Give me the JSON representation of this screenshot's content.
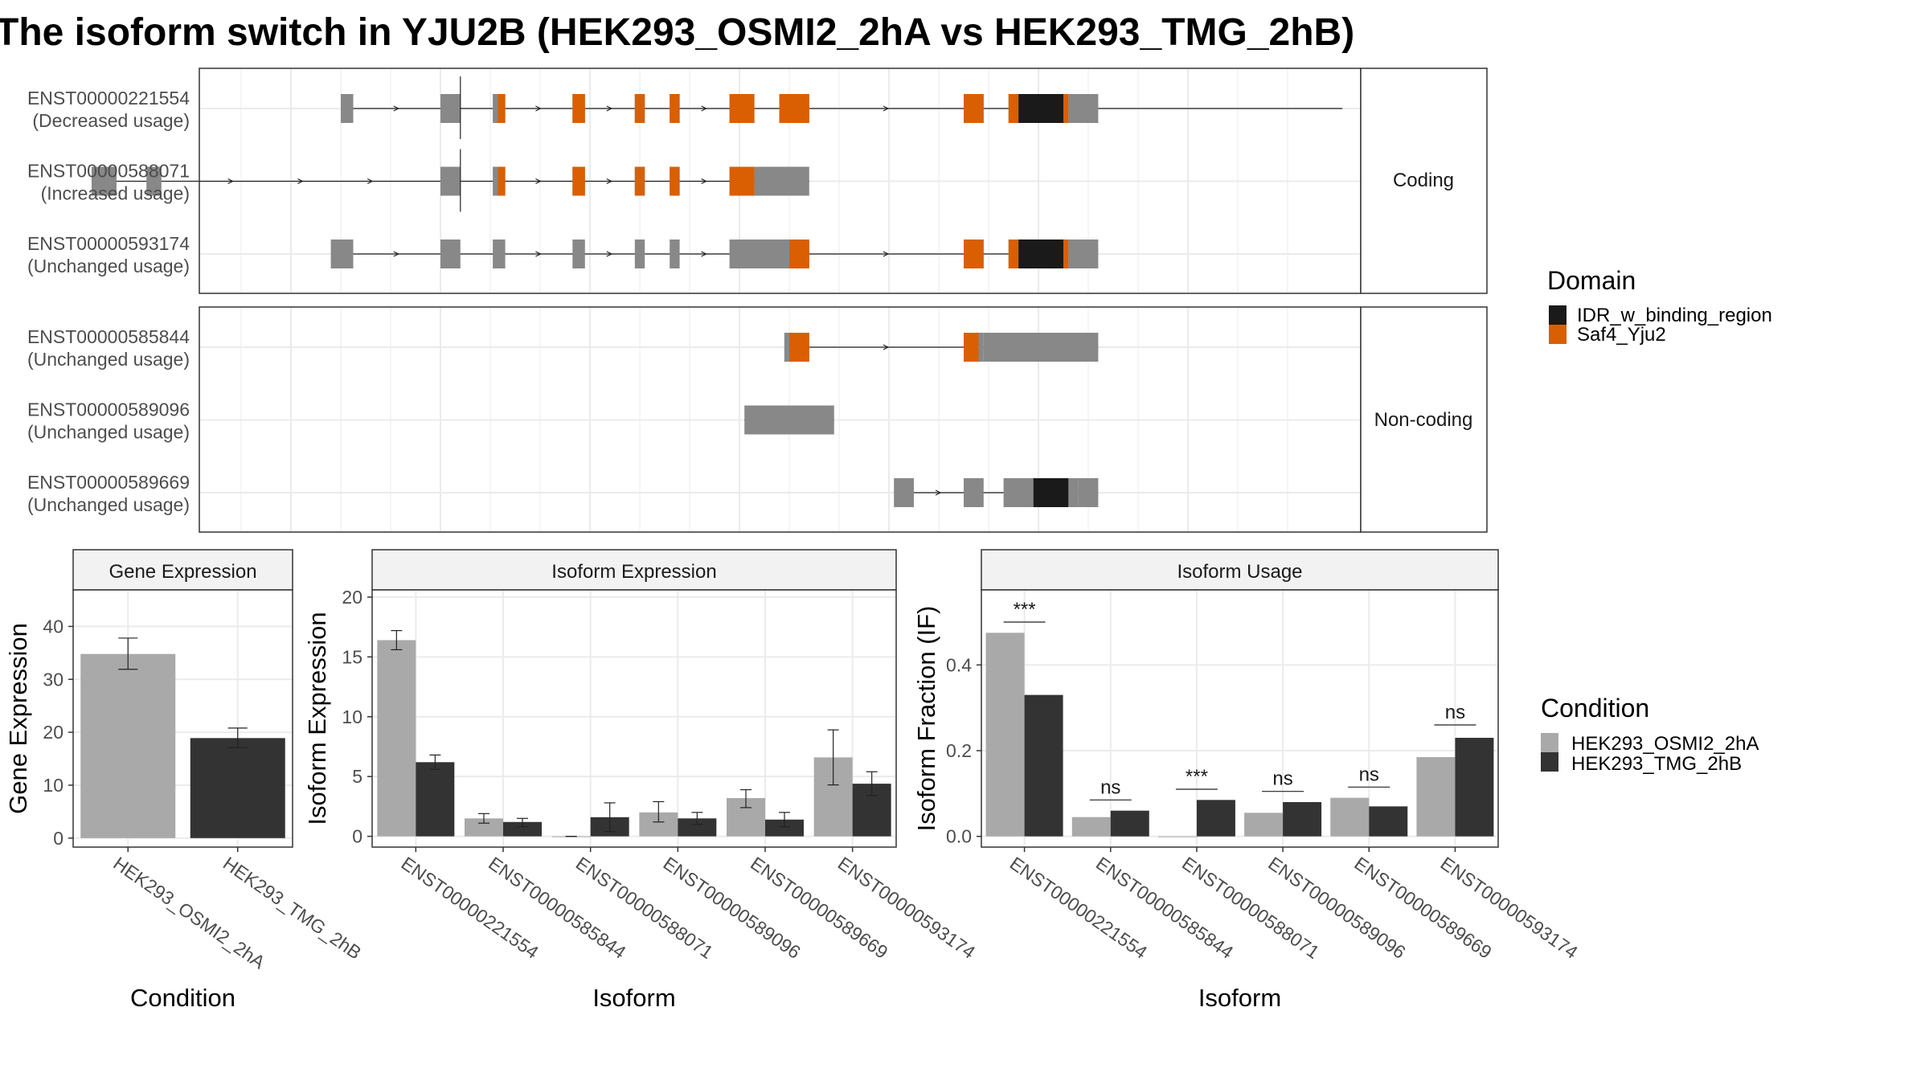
{
  "title": "The isoform switch in YJU2B (HEK293_OSMI2_2hA vs HEK293_TMG_2hB)",
  "colors": {
    "cond_a": "#a9a9a9",
    "cond_b": "#333333",
    "exon": "#888888",
    "saf4": "#d95f02",
    "idr": "#1a1a1a",
    "strip": "#f2f2f2",
    "grid": "#ebebeb",
    "frame": "#333333"
  },
  "structure": {
    "facet_coding": "Coding",
    "facet_noncoding": "Non-coding",
    "coding": [
      {
        "id": "ENST00000221554",
        "usage": "(Decreased usage)",
        "intron": [
          1.0,
          21.1
        ],
        "exons": [
          [
            1.0,
            1.25
          ],
          [
            3.0,
            3.4
          ],
          [
            4.05,
            4.3
          ],
          [
            5.65,
            5.9
          ],
          [
            6.9,
            7.1
          ],
          [
            7.6,
            7.8
          ],
          [
            8.8,
            9.3
          ],
          [
            9.8,
            10.4
          ],
          [
            13.5,
            13.9
          ],
          [
            14.4,
            15.4
          ],
          [
            15.4,
            15.6
          ],
          [
            15.6,
            16.2
          ]
        ],
        "domains": [
          {
            "d": "saf4",
            "r": [
              4.15,
              4.3
            ]
          },
          {
            "d": "saf4",
            "r": [
              5.65,
              5.9
            ]
          },
          {
            "d": "saf4",
            "r": [
              6.9,
              7.1
            ]
          },
          {
            "d": "saf4",
            "r": [
              7.6,
              7.8
            ]
          },
          {
            "d": "saf4",
            "r": [
              8.8,
              9.3
            ]
          },
          {
            "d": "saf4",
            "r": [
              9.8,
              10.4
            ]
          },
          {
            "d": "saf4",
            "r": [
              13.5,
              13.9
            ]
          },
          {
            "d": "saf4",
            "r": [
              14.4,
              14.6
            ]
          },
          {
            "d": "idr",
            "r": [
              14.6,
              15.5
            ]
          },
          {
            "d": "saf4",
            "r": [
              15.5,
              15.6
            ]
          }
        ],
        "mark": 3.4
      },
      {
        "id": "ENST00000588071",
        "usage": "(Increased usage)",
        "intron": [
          -4.0,
          10.4
        ],
        "exons": [
          [
            -4.0,
            -3.5
          ],
          [
            -2.9,
            -2.6
          ],
          [
            3.0,
            3.4
          ],
          [
            4.05,
            4.3
          ],
          [
            5.65,
            5.9
          ],
          [
            6.9,
            7.1
          ],
          [
            7.6,
            7.8
          ],
          [
            8.8,
            9.3
          ],
          [
            9.3,
            10.4
          ]
        ],
        "domains": [
          {
            "d": "saf4",
            "r": [
              4.15,
              4.3
            ]
          },
          {
            "d": "saf4",
            "r": [
              5.65,
              5.9
            ]
          },
          {
            "d": "saf4",
            "r": [
              6.9,
              7.1
            ]
          },
          {
            "d": "saf4",
            "r": [
              7.6,
              7.8
            ]
          },
          {
            "d": "saf4",
            "r": [
              8.8,
              9.3
            ]
          }
        ],
        "mark": 3.4
      },
      {
        "id": "ENST00000593174",
        "usage": "(Unchanged usage)",
        "intron": [
          0.8,
          16.2
        ],
        "exons": [
          [
            0.8,
            1.25
          ],
          [
            3.0,
            3.4
          ],
          [
            4.05,
            4.3
          ],
          [
            5.65,
            5.9
          ],
          [
            6.9,
            7.1
          ],
          [
            7.6,
            7.8
          ],
          [
            8.8,
            10.0
          ],
          [
            10.0,
            10.4
          ],
          [
            13.5,
            13.9
          ],
          [
            14.4,
            15.4
          ],
          [
            15.4,
            15.6
          ],
          [
            15.6,
            16.2
          ]
        ],
        "domains": [
          {
            "d": "saf4",
            "r": [
              10.0,
              10.4
            ]
          },
          {
            "d": "saf4",
            "r": [
              13.5,
              13.9
            ]
          },
          {
            "d": "saf4",
            "r": [
              14.4,
              14.6
            ]
          },
          {
            "d": "idr",
            "r": [
              14.6,
              15.5
            ]
          },
          {
            "d": "saf4",
            "r": [
              15.5,
              15.6
            ]
          }
        ]
      }
    ],
    "noncoding": [
      {
        "id": "ENST00000585844",
        "usage": "(Unchanged usage)",
        "intron": [
          9.9,
          16.2
        ],
        "exons": [
          [
            9.9,
            10.4
          ],
          [
            13.5,
            13.9
          ],
          [
            13.9,
            16.2
          ]
        ],
        "domains": [
          {
            "d": "saf4",
            "r": [
              10.0,
              10.4
            ]
          },
          {
            "d": "saf4",
            "r": [
              13.5,
              13.8
            ]
          }
        ]
      },
      {
        "id": "ENST00000589096",
        "usage": "(Unchanged usage)",
        "intron": [
          9.1,
          10.9
        ],
        "exons": [
          [
            9.1,
            10.9
          ]
        ],
        "domains": []
      },
      {
        "id": "ENST00000589669",
        "usage": "(Unchanged usage)",
        "intron": [
          12.1,
          16.2
        ],
        "exons": [
          [
            12.1,
            12.5
          ],
          [
            13.5,
            13.9
          ],
          [
            14.3,
            15.4
          ],
          [
            15.4,
            15.8
          ],
          [
            15.8,
            16.2
          ]
        ],
        "domains": [
          {
            "d": "idr",
            "r": [
              14.9,
              15.6
            ]
          }
        ]
      }
    ]
  },
  "domain_legend": {
    "title": "Domain",
    "items": [
      {
        "label": "IDR_w_binding_region",
        "color": "#1a1a1a"
      },
      {
        "label": "Saf4_Yju2",
        "color": "#d95f02"
      }
    ]
  },
  "condition_legend": {
    "title": "Condition",
    "items": [
      {
        "label": "HEK293_OSMI2_2hA",
        "color": "#a9a9a9"
      },
      {
        "label": "HEK293_TMG_2hB",
        "color": "#333333"
      }
    ]
  },
  "chart_data": [
    {
      "type": "bar",
      "title": "Gene Expression",
      "xlabel": "Condition",
      "ylabel": "Gene Expression",
      "categories": [
        "HEK293_OSMI2_2hA",
        "HEK293_TMG_2hB"
      ],
      "values": [
        34.8,
        18.9
      ],
      "err_low": [
        31.9,
        17.1
      ],
      "err_high": [
        37.8,
        20.8
      ],
      "ylim": [
        -1.7,
        46.9
      ],
      "yticks": [
        0,
        10,
        20,
        30,
        40
      ]
    },
    {
      "type": "bar",
      "title": "Isoform Expression",
      "xlabel": "Isoform",
      "ylabel": "Isoform Expression",
      "categories": [
        "ENST00000221554",
        "ENST00000585844",
        "ENST00000588071",
        "ENST00000589096",
        "ENST00000589669",
        "ENST00000593174"
      ],
      "series": [
        {
          "name": "HEK293_OSMI2_2hA",
          "values": [
            16.4,
            1.5,
            0.0,
            2.0,
            3.2,
            6.6
          ],
          "err_low": [
            15.6,
            1.1,
            0.0,
            1.2,
            2.4,
            4.3
          ],
          "err_high": [
            17.2,
            1.9,
            0.0,
            2.9,
            3.9,
            8.9
          ]
        },
        {
          "name": "HEK293_TMG_2hB",
          "values": [
            6.2,
            1.2,
            1.6,
            1.5,
            1.4,
            4.4
          ],
          "err_low": [
            5.6,
            0.8,
            0.4,
            1.0,
            0.8,
            3.4
          ],
          "err_high": [
            6.8,
            1.5,
            2.8,
            2.0,
            2.0,
            5.4
          ]
        }
      ],
      "ylim": [
        -0.9,
        20.6
      ],
      "yticks": [
        0,
        5,
        10,
        15,
        20
      ]
    },
    {
      "type": "bar",
      "title": "Isoform Usage",
      "xlabel": "Isoform",
      "ylabel": "Isoform Fraction (IF)",
      "categories": [
        "ENST00000221554",
        "ENST00000585844",
        "ENST00000588071",
        "ENST00000589096",
        "ENST00000589669",
        "ENST00000593174"
      ],
      "series": [
        {
          "name": "HEK293_OSMI2_2hA",
          "values": [
            0.475,
            0.045,
            0.0,
            0.055,
            0.09,
            0.185
          ]
        },
        {
          "name": "HEK293_TMG_2hB",
          "values": [
            0.33,
            0.06,
            0.085,
            0.08,
            0.07,
            0.23
          ]
        }
      ],
      "significance": [
        "***",
        "ns",
        "***",
        "ns",
        "ns",
        "ns"
      ],
      "sig_level": [
        0.5,
        0.085,
        0.11,
        0.105,
        0.115,
        0.26
      ],
      "ylim": [
        -0.025,
        0.575
      ],
      "yticks": [
        0.0,
        0.2,
        0.4
      ]
    }
  ]
}
